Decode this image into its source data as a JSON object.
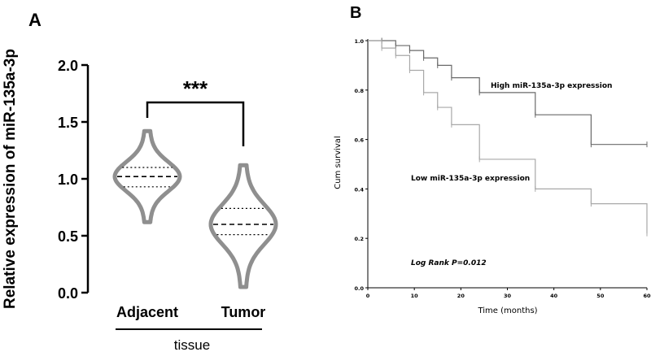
{
  "panels": {
    "a": {
      "label": "A"
    },
    "b": {
      "label": "B"
    }
  },
  "chart_data": [
    {
      "type": "violin",
      "ylabel": "Relative expression of miR-135a-3p",
      "xlabel": "tissue",
      "categories": [
        "Adjacent",
        "Tumor"
      ],
      "ylim": [
        0.0,
        2.0
      ],
      "yticks": [
        "0.0",
        "0.5",
        "1.0",
        "1.5",
        "2.0"
      ],
      "significance": "***",
      "groups": [
        {
          "name": "Adjacent",
          "min": 0.62,
          "max": 1.42,
          "median": 1.02,
          "q1": 0.93,
          "q3": 1.1
        },
        {
          "name": "Tumor",
          "min": 0.05,
          "max": 1.12,
          "median": 0.6,
          "q1": 0.51,
          "q3": 0.74
        }
      ],
      "colors": {
        "violin": "#8f8f8f",
        "bracket": "#000000"
      }
    },
    {
      "type": "line",
      "subtype": "kaplan-meier",
      "xlabel": "Time (months)",
      "ylabel": "Cum survival",
      "xlim": [
        0,
        60
      ],
      "ylim": [
        0.0,
        1.0
      ],
      "xticks": [
        "0",
        "10",
        "20",
        "30",
        "40",
        "50",
        "60"
      ],
      "yticks": [
        "0.0",
        "0.2",
        "0.4",
        "0.6",
        "0.8",
        "1.0"
      ],
      "annotation": "Log Rank P=0.012",
      "series": [
        {
          "name": "High miR-135a-3p expression",
          "color": "#6a6a6a",
          "steps": [
            [
              0,
              1.0
            ],
            [
              6,
              0.98
            ],
            [
              9,
              0.96
            ],
            [
              12,
              0.93
            ],
            [
              15,
              0.9
            ],
            [
              18,
              0.85
            ],
            [
              24,
              0.79
            ],
            [
              36,
              0.7
            ],
            [
              48,
              0.58
            ],
            [
              60,
              0.58
            ]
          ],
          "censors": [
            [
              3,
              1.0
            ],
            [
              6,
              0.98
            ],
            [
              9,
              0.96
            ],
            [
              12,
              0.93
            ],
            [
              15,
              0.9
            ],
            [
              18,
              0.85
            ],
            [
              24,
              0.79
            ],
            [
              36,
              0.7
            ],
            [
              48,
              0.58
            ],
            [
              60,
              0.58
            ]
          ]
        },
        {
          "name": "Low miR-135a-3p expression",
          "color": "#a8a8a8",
          "steps": [
            [
              0,
              1.0
            ],
            [
              3,
              0.97
            ],
            [
              6,
              0.94
            ],
            [
              9,
              0.88
            ],
            [
              12,
              0.79
            ],
            [
              15,
              0.73
            ],
            [
              18,
              0.66
            ],
            [
              24,
              0.52
            ],
            [
              36,
              0.4
            ],
            [
              48,
              0.34
            ],
            [
              60,
              0.22
            ]
          ],
          "censors": [
            [
              3,
              0.97
            ],
            [
              6,
              0.94
            ],
            [
              9,
              0.88
            ],
            [
              12,
              0.79
            ],
            [
              15,
              0.73
            ],
            [
              18,
              0.66
            ],
            [
              24,
              0.52
            ],
            [
              36,
              0.4
            ],
            [
              48,
              0.34
            ],
            [
              60,
              0.22
            ]
          ]
        }
      ]
    }
  ]
}
